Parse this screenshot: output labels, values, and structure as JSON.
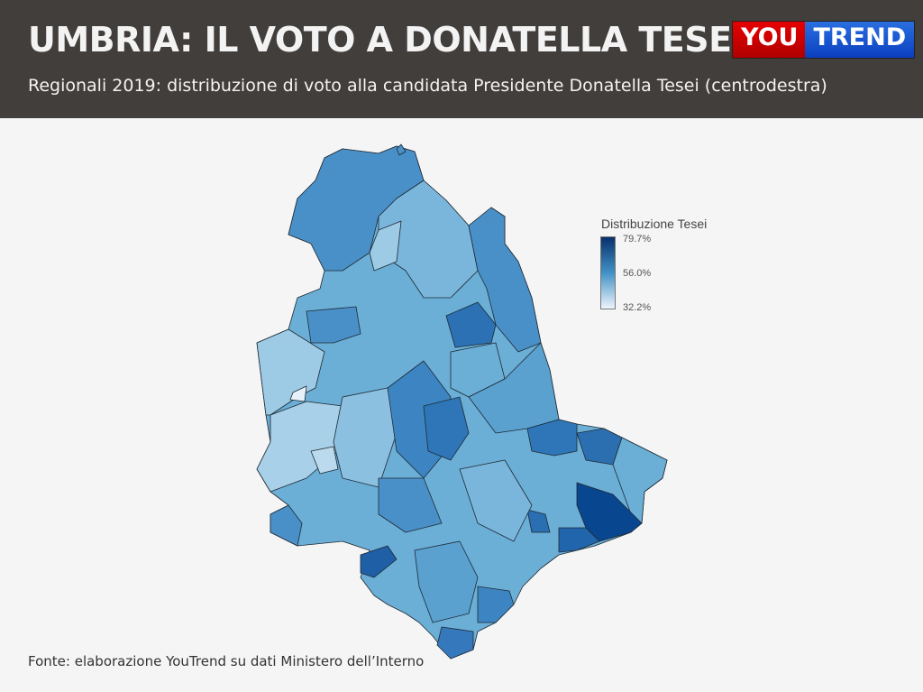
{
  "header": {
    "title": "UMBRIA: IL VOTO A DONATELLA TESEI",
    "subtitle": "Regionali 2019: distribuzione di voto alla candidata Presidente Donatella Tesei (centrodestra)",
    "logo_you": "YOU",
    "logo_trend": "TREND"
  },
  "legend": {
    "title": "Distribuzione Tesei",
    "max": "79.7%",
    "mid": "56.0%",
    "min": "32.2%",
    "colors": {
      "low": "#eef4fc",
      "mid": "#4292c6",
      "high": "#08306b"
    }
  },
  "source": "Fonte: elaborazione YouTrend su dati Ministero dell’Interno"
}
